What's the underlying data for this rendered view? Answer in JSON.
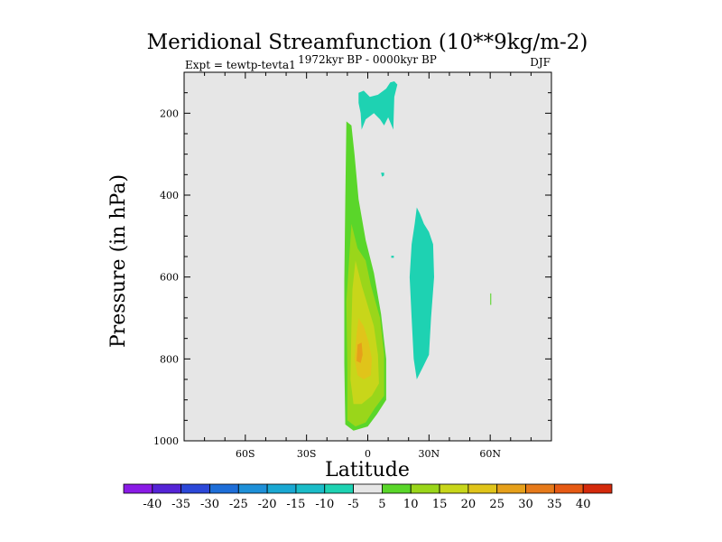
{
  "chart_data": {
    "type": "contour",
    "title": "Meridional Streamfunction (10**9kg/m-2)",
    "subtitle_left": "Expt = tewtp-tevta1",
    "subtitle_center": "1972kyr BP - 0000kyr BP",
    "subtitle_right": "DJF",
    "xlabel": "Latitude",
    "ylabel": "Pressure (in hPa)",
    "xlim": [
      -90,
      90
    ],
    "ylim": [
      100,
      1000
    ],
    "y_reversed": true,
    "x_ticks": [
      {
        "value": -60,
        "label": "60S"
      },
      {
        "value": -30,
        "label": "30S"
      },
      {
        "value": 0,
        "label": "0"
      },
      {
        "value": 30,
        "label": "30N"
      },
      {
        "value": 60,
        "label": "60N"
      }
    ],
    "y_ticks": [
      {
        "value": 200,
        "label": "200"
      },
      {
        "value": 400,
        "label": "400"
      },
      {
        "value": 600,
        "label": "600"
      },
      {
        "value": 800,
        "label": "800"
      },
      {
        "value": 1000,
        "label": "1000"
      }
    ],
    "background_color": "#e6e6e6",
    "colorbar": {
      "labels": [
        "-40",
        "-35",
        "-30",
        "-25",
        "-20",
        "-15",
        "-10",
        "-5",
        "5",
        "10",
        "15",
        "20",
        "25",
        "30",
        "35",
        "40"
      ],
      "colors": [
        "#8a1be6",
        "#5524d6",
        "#2c48d8",
        "#1e6ed8",
        "#1e90d8",
        "#1aa8d2",
        "#1bbcc8",
        "#1ed2b2",
        "#e6e6e6",
        "#5ad62a",
        "#9ad61a",
        "#c8d61a",
        "#e0c41a",
        "#e6a01a",
        "#e67a1a",
        "#e65a14",
        "#d42a0c"
      ]
    },
    "regions": [
      {
        "name": "positive-5-10",
        "level_color": "#5ad62a",
        "polygon": [
          [
            -10.5,
            220
          ],
          [
            -8,
            230
          ],
          [
            -6.5,
            300
          ],
          [
            -4.5,
            410
          ],
          [
            -1,
            510
          ],
          [
            3,
            590
          ],
          [
            6.5,
            690
          ],
          [
            9,
            800
          ],
          [
            9,
            900
          ],
          [
            4.5,
            935
          ],
          [
            0,
            965
          ],
          [
            -7,
            975
          ],
          [
            -11,
            960
          ],
          [
            -11.5,
            810
          ],
          [
            -11.5,
            610
          ],
          [
            -11,
            410
          ]
        ]
      },
      {
        "name": "positive-10-15",
        "level_color": "#9ad61a",
        "polygon": [
          [
            -8,
            470
          ],
          [
            -5,
            530
          ],
          [
            -1,
            560
          ],
          [
            1.5,
            620
          ],
          [
            6,
            700
          ],
          [
            8,
            790
          ],
          [
            8,
            890
          ],
          [
            3.5,
            920
          ],
          [
            -1,
            955
          ],
          [
            -6,
            965
          ],
          [
            -10,
            950
          ],
          [
            -10,
            830
          ],
          [
            -10.5,
            660
          ]
        ]
      },
      {
        "name": "positive-15-20",
        "level_color": "#c8d61a",
        "polygon": [
          [
            -6,
            560
          ],
          [
            -3,
            620
          ],
          [
            0,
            670
          ],
          [
            3,
            720
          ],
          [
            5,
            790
          ],
          [
            5.5,
            860
          ],
          [
            2,
            890
          ],
          [
            -3,
            910
          ],
          [
            -7,
            910
          ],
          [
            -8.5,
            850
          ],
          [
            -8,
            720
          ],
          [
            -7.5,
            630
          ]
        ]
      },
      {
        "name": "positive-20-25",
        "level_color": "#e0c41a",
        "polygon": [
          [
            -4.5,
            700
          ],
          [
            -2,
            720
          ],
          [
            0.5,
            760
          ],
          [
            2,
            800
          ],
          [
            1.5,
            840
          ],
          [
            -2,
            850
          ],
          [
            -5,
            840
          ],
          [
            -6.5,
            800
          ],
          [
            -5.5,
            740
          ]
        ]
      },
      {
        "name": "positive-25-30",
        "level_color": "#e6a01a",
        "polygon": [
          [
            -5,
            765
          ],
          [
            -3,
            760
          ],
          [
            -2.5,
            790
          ],
          [
            -3.5,
            810
          ],
          [
            -5.5,
            805
          ]
        ]
      },
      {
        "name": "negative-upper-cell",
        "level_color": "#1ed2b2",
        "polygon": [
          [
            -4.5,
            150
          ],
          [
            -2,
            145
          ],
          [
            1,
            160
          ],
          [
            5,
            155
          ],
          [
            9,
            140
          ],
          [
            11,
            125
          ],
          [
            13,
            122
          ],
          [
            14.5,
            130
          ],
          [
            13,
            160
          ],
          [
            12.5,
            240
          ],
          [
            10,
            210
          ],
          [
            8,
            230
          ],
          [
            6,
            215
          ],
          [
            3,
            200
          ],
          [
            -1,
            215
          ],
          [
            -3,
            240
          ],
          [
            -3.5,
            200
          ],
          [
            -4.5,
            175
          ]
        ]
      },
      {
        "name": "negative-mid-cell",
        "level_color": "#1ed2b2",
        "polygon": [
          [
            24,
            430
          ],
          [
            25.5,
            445
          ],
          [
            27.5,
            470
          ],
          [
            30,
            490
          ],
          [
            32,
            520
          ],
          [
            32.5,
            600
          ],
          [
            31,
            700
          ],
          [
            30,
            790
          ],
          [
            27,
            820
          ],
          [
            24,
            850
          ],
          [
            22.5,
            800
          ],
          [
            21.5,
            700
          ],
          [
            20.5,
            600
          ],
          [
            21.5,
            520
          ],
          [
            23,
            470
          ]
        ]
      },
      {
        "name": "negative-speck",
        "level_color": "#1ed2b2",
        "polygon": [
          [
            6.5,
            345
          ],
          [
            8,
            345
          ],
          [
            8,
            352
          ],
          [
            7,
            355
          ]
        ]
      },
      {
        "name": "negative-dot",
        "level_color": "#1ed2b2",
        "polygon": [
          [
            11.5,
            548
          ],
          [
            12.8,
            548
          ],
          [
            12.8,
            553
          ],
          [
            11.5,
            553
          ]
        ]
      },
      {
        "name": "positive-dot",
        "level_color": "#5ad62a",
        "polygon": [
          [
            60,
            640
          ],
          [
            60.5,
            640
          ],
          [
            60.5,
            668
          ],
          [
            60,
            668
          ]
        ]
      }
    ]
  }
}
